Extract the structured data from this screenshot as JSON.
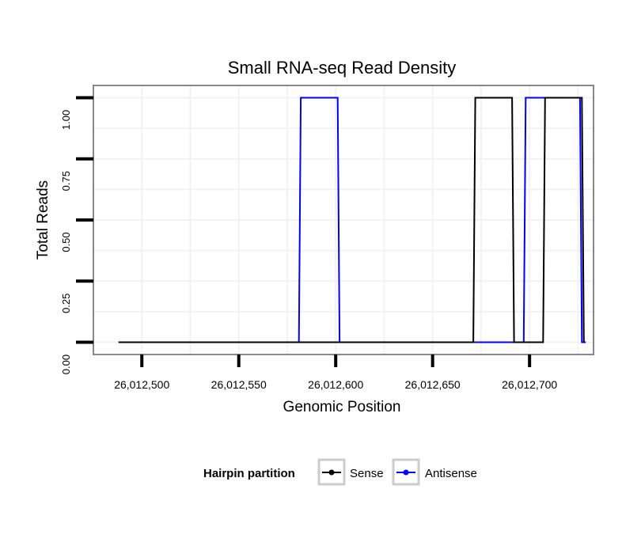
{
  "chart_data": {
    "type": "line",
    "title": "Small RNA-seq Read Density",
    "xlabel": "Genomic Position",
    "ylabel": "Total Reads",
    "xlim": [
      26012475,
      26012733
    ],
    "ylim": [
      -0.05,
      1.05
    ],
    "xticks": [
      26012500,
      26012550,
      26012600,
      26012650,
      26012700
    ],
    "xtick_labels": [
      "26,012,500",
      "26,012,550",
      "26,012,600",
      "26,012,650",
      "26,012,700"
    ],
    "yticks": [
      0,
      0.25,
      0.5,
      0.75,
      1
    ],
    "ytick_labels": [
      "0.00",
      "0.25",
      "0.50",
      "0.75",
      "1.00"
    ],
    "grid": true,
    "legend": {
      "title": "Hairpin partition",
      "position": "bottom",
      "entries": [
        {
          "name": "Sense",
          "color": "#000000"
        },
        {
          "name": "Antisense",
          "color": "#0000ff"
        }
      ]
    },
    "series": [
      {
        "name": "Antisense",
        "color": "#0000ff",
        "x": [
          26012488,
          26012581,
          26012582,
          26012601,
          26012602,
          26012671,
          26012697,
          26012698,
          26012726,
          26012727,
          26012729
        ],
        "y": [
          0,
          0,
          1,
          1,
          0,
          0,
          0,
          1,
          1,
          0,
          0
        ]
      },
      {
        "name": "Sense",
        "color": "#000000",
        "x": [
          26012488,
          26012671,
          26012672,
          26012691,
          26012692,
          26012707,
          26012708,
          26012727,
          26012728
        ],
        "y": [
          0,
          0,
          1,
          1,
          0,
          0,
          1,
          1,
          0
        ]
      }
    ]
  }
}
